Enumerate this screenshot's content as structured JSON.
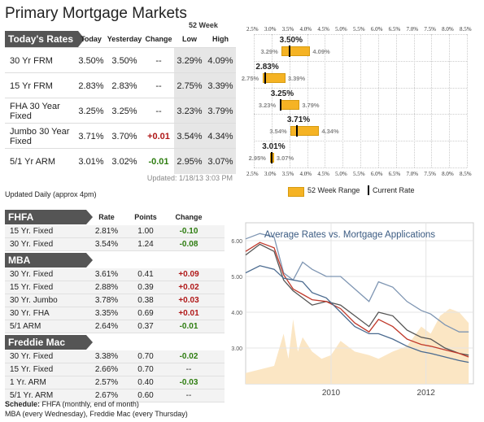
{
  "title": "Primary Mortgage Markets",
  "week52_label": "52 Week",
  "todays_rates": {
    "label": "Today's Rates",
    "headers": {
      "today": "Today",
      "yesterday": "Yesterday",
      "change": "Change",
      "low": "Low",
      "high": "High"
    },
    "rows": [
      {
        "name": "30 Yr FRM",
        "today": "3.50%",
        "yesterday": "3.50%",
        "change": "--",
        "low": "3.29%",
        "high": "4.09%",
        "change_type": "none"
      },
      {
        "name": "15 Yr FRM",
        "today": "2.83%",
        "yesterday": "2.83%",
        "change": "--",
        "low": "2.75%",
        "high": "3.39%",
        "change_type": "none"
      },
      {
        "name": "FHA 30 Year Fixed",
        "today": "3.25%",
        "yesterday": "3.25%",
        "change": "--",
        "low": "3.23%",
        "high": "3.79%",
        "change_type": "none"
      },
      {
        "name": "Jumbo 30 Year Fixed",
        "today": "3.71%",
        "yesterday": "3.70%",
        "change": "+0.01",
        "low": "3.54%",
        "high": "4.34%",
        "change_type": "pos"
      },
      {
        "name": "5/1 Yr ARM",
        "today": "3.01%",
        "yesterday": "3.02%",
        "change": "-0.01",
        "low": "2.95%",
        "high": "3.07%",
        "change_type": "neg"
      }
    ],
    "updated": "Updated: 1/18/13 3:03 PM",
    "daily": "Updated Daily (approx 4pm)"
  },
  "range_chart": {
    "ticks": [
      "2.5%",
      "3.0%",
      "3.5%",
      "4.0%",
      "4.5%",
      "5.0%",
      "5.5%",
      "6.0%",
      "6.5%",
      "7.0%",
      "7.5%",
      "8.0%",
      "8.5%"
    ],
    "tick_values": [
      2.5,
      3.0,
      3.5,
      4.0,
      4.5,
      5.0,
      5.5,
      6.0,
      6.5,
      7.0,
      7.5,
      8.0,
      8.5
    ],
    "rows": [
      {
        "current": 3.5,
        "low": 3.29,
        "high": 4.09,
        "current_label": "3.50%",
        "low_label": "3.29%",
        "high_label": "4.09%"
      },
      {
        "current": 2.83,
        "low": 2.75,
        "high": 3.39,
        "current_label": "2.83%",
        "low_label": "2.75%",
        "high_label": "3.39%"
      },
      {
        "current": 3.25,
        "low": 3.23,
        "high": 3.79,
        "current_label": "3.25%",
        "low_label": "3.23%",
        "high_label": "3.79%"
      },
      {
        "current": 3.71,
        "low": 3.54,
        "high": 4.34,
        "current_label": "3.71%",
        "low_label": "3.54%",
        "high_label": "4.34%"
      },
      {
        "current": 3.01,
        "low": 2.95,
        "high": 3.07,
        "current_label": "3.01%",
        "low_label": "2.95%",
        "high_label": "3.07%"
      }
    ],
    "legend_range": "52 Week Range",
    "legend_current": "Current Rate",
    "bar_color": "#f5b324"
  },
  "lower": {
    "headers": {
      "rate": "Rate",
      "points": "Points",
      "change": "Change"
    },
    "sections": [
      {
        "label": "FHFA",
        "rows": [
          {
            "name": "15 Yr. Fixed",
            "rate": "2.81%",
            "points": "1.00",
            "change": "-0.10",
            "change_type": "neg"
          },
          {
            "name": "30 Yr. Fixed",
            "rate": "3.54%",
            "points": "1.24",
            "change": "-0.08",
            "change_type": "neg"
          }
        ]
      },
      {
        "label": "MBA",
        "rows": [
          {
            "name": "30 Yr. Fixed",
            "rate": "3.61%",
            "points": "0.41",
            "change": "+0.09",
            "change_type": "pos"
          },
          {
            "name": "15 Yr. Fixed",
            "rate": "2.88%",
            "points": "0.39",
            "change": "+0.02",
            "change_type": "pos"
          },
          {
            "name": "30 Yr. Jumbo",
            "rate": "3.78%",
            "points": "0.38",
            "change": "+0.03",
            "change_type": "pos"
          },
          {
            "name": "30 Yr. FHA",
            "rate": "3.35%",
            "points": "0.69",
            "change": "+0.01",
            "change_type": "pos"
          },
          {
            "name": "5/1 ARM",
            "rate": "2.64%",
            "points": "0.37",
            "change": "-0.01",
            "change_type": "neg"
          }
        ]
      },
      {
        "label": "Freddie Mac",
        "rows": [
          {
            "name": "30 Yr. Fixed",
            "rate": "3.38%",
            "points": "0.70",
            "change": "-0.02",
            "change_type": "neg"
          },
          {
            "name": "15 Yr. Fixed",
            "rate": "2.66%",
            "points": "0.70",
            "change": "--",
            "change_type": "none"
          },
          {
            "name": "1 Yr. ARM",
            "rate": "2.57%",
            "points": "0.40",
            "change": "-0.03",
            "change_type": "neg"
          },
          {
            "name": "5/1 Yr. ARM",
            "rate": "2.67%",
            "points": "0.60",
            "change": "--",
            "change_type": "none"
          }
        ]
      }
    ],
    "schedule_label": "Schedule:",
    "schedule_line1": "FHFA (monthly, end of month)",
    "schedule_line2": "MBA (every Wednesday), Freddie Mac (every Thursday)"
  },
  "chart_data": {
    "type": "line",
    "title": "Average Rates vs. Mortgage Applications",
    "xlabel": "",
    "ylabel": "",
    "ylim": [
      2.0,
      6.5
    ],
    "y_ticks": [
      "6.00",
      "5.00",
      "4.00",
      "3.00"
    ],
    "y_tick_values": [
      6.0,
      5.0,
      4.0,
      3.0
    ],
    "x_ticks": [
      "2010",
      "2012"
    ],
    "x_tick_values": [
      2010,
      2012
    ],
    "xlim": [
      2008.2,
      2013.0
    ],
    "series": [
      {
        "color": "#7f96b3",
        "x": [
          2008.2,
          2008.5,
          2008.8,
          2009.0,
          2009.2,
          2009.4,
          2009.6,
          2009.9,
          2010.2,
          2010.5,
          2010.8,
          2011.0,
          2011.3,
          2011.6,
          2011.9,
          2012.1,
          2012.4,
          2012.7,
          2012.9
        ],
        "values": [
          6.05,
          6.2,
          6.1,
          5.1,
          4.9,
          5.4,
          5.2,
          5.0,
          5.0,
          4.65,
          4.3,
          4.85,
          4.7,
          4.3,
          4.05,
          3.95,
          3.65,
          3.45,
          3.45
        ]
      },
      {
        "color": "#555555",
        "x": [
          2008.2,
          2008.5,
          2008.8,
          2009.0,
          2009.2,
          2009.4,
          2009.6,
          2009.9,
          2010.2,
          2010.5,
          2010.8,
          2011.0,
          2011.3,
          2011.6,
          2011.9,
          2012.1,
          2012.4,
          2012.7,
          2012.9
        ],
        "values": [
          5.6,
          5.9,
          5.7,
          4.9,
          4.6,
          4.4,
          4.2,
          4.3,
          4.2,
          3.9,
          3.6,
          4.0,
          3.9,
          3.5,
          3.3,
          3.25,
          3.0,
          2.85,
          2.8
        ]
      },
      {
        "color": "#c0392b",
        "x": [
          2008.2,
          2008.5,
          2008.8,
          2009.0,
          2009.2,
          2009.4,
          2009.6,
          2009.9,
          2010.2,
          2010.5,
          2010.8,
          2011.0,
          2011.3,
          2011.6,
          2011.9,
          2012.1,
          2012.4,
          2012.7,
          2012.9
        ],
        "values": [
          5.7,
          5.95,
          5.8,
          5.05,
          4.65,
          4.5,
          4.35,
          4.3,
          4.1,
          3.7,
          3.45,
          3.8,
          3.6,
          3.25,
          3.1,
          3.05,
          2.95,
          2.85,
          2.75
        ]
      },
      {
        "color": "#4a6a8f",
        "x": [
          2008.2,
          2008.5,
          2008.8,
          2009.0,
          2009.2,
          2009.4,
          2009.6,
          2009.9,
          2010.2,
          2010.5,
          2010.8,
          2011.0,
          2011.3,
          2011.6,
          2011.9,
          2012.1,
          2012.4,
          2012.7,
          2012.9
        ],
        "values": [
          5.1,
          5.3,
          5.2,
          4.95,
          4.9,
          4.85,
          4.55,
          4.4,
          4.0,
          3.6,
          3.4,
          3.4,
          3.25,
          3.05,
          2.9,
          2.85,
          2.75,
          2.65,
          2.6
        ]
      }
    ],
    "area": {
      "color": "#fbe6c4",
      "x": [
        2008.2,
        2008.5,
        2008.8,
        2009.0,
        2009.1,
        2009.2,
        2009.3,
        2009.4,
        2009.6,
        2009.8,
        2010.0,
        2010.2,
        2010.5,
        2010.8,
        2011.0,
        2011.3,
        2011.6,
        2011.9,
        2012.1,
        2012.3,
        2012.5,
        2012.7,
        2012.9
      ],
      "values": [
        2.3,
        2.4,
        2.5,
        3.4,
        2.7,
        3.8,
        2.9,
        3.3,
        2.9,
        2.7,
        2.8,
        3.2,
        2.9,
        2.8,
        2.7,
        2.9,
        3.05,
        3.6,
        3.4,
        3.9,
        4.1,
        4.0,
        3.7
      ]
    }
  }
}
